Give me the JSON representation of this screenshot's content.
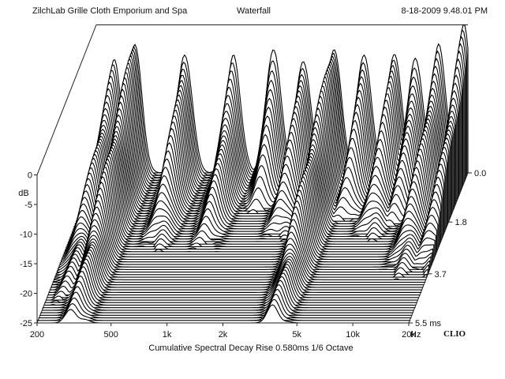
{
  "header": {
    "left": "ZilchLab Grille Cloth Emporium and Spa",
    "center": "Waterfall",
    "right": "8-18-2009 9.48.01 PM"
  },
  "chart_data": {
    "type": "waterfall",
    "caption": "Cumulative Spectral Decay   Rise 0.580ms   1/6 Octave",
    "brand": "CLIO",
    "x_axis": {
      "scale": "log",
      "range_hz": [
        200,
        20000
      ],
      "ticks": [
        {
          "value": 200,
          "label": "200"
        },
        {
          "value": 500,
          "label": "500"
        },
        {
          "value": 1000,
          "label": "1k"
        },
        {
          "value": 2000,
          "label": "2k"
        },
        {
          "value": 5000,
          "label": "5k"
        },
        {
          "value": 10000,
          "label": "10k"
        },
        {
          "value": 20000,
          "label": "20k"
        }
      ],
      "unit": "Hz"
    },
    "y_axis": {
      "label": "dB",
      "range_db": [
        -25,
        0
      ],
      "ticks": [
        {
          "value": 0,
          "label": "0"
        },
        {
          "value": -5,
          "label": "-5"
        },
        {
          "value": -10,
          "label": "-10"
        },
        {
          "value": -15,
          "label": "-15"
        },
        {
          "value": -20,
          "label": "-20"
        },
        {
          "value": -25,
          "label": "-25"
        }
      ]
    },
    "z_axis": {
      "unit": "ms",
      "range_ms": [
        0,
        5.5
      ],
      "ticks": [
        {
          "value": 0.0,
          "label": "0.0"
        },
        {
          "value": 1.8,
          "label": "1.8"
        },
        {
          "value": 3.7,
          "label": "3.7"
        },
        {
          "value": 5.5,
          "label": "5.5"
        }
      ]
    },
    "slices": 60,
    "grid": false,
    "features": [
      {
        "freq_hz": 250,
        "level_db": -7,
        "decay_ms": 4.6
      },
      {
        "freq_hz": 320,
        "level_db": -3,
        "decay_ms": 5.0
      },
      {
        "freq_hz": 600,
        "level_db": -4,
        "decay_ms": 2.4
      },
      {
        "freq_hz": 1100,
        "level_db": -6,
        "decay_ms": 2.6
      },
      {
        "freq_hz": 1800,
        "level_db": -3,
        "decay_ms": 1.2
      },
      {
        "freq_hz": 2600,
        "level_db": -5,
        "decay_ms": 2.2
      },
      {
        "freq_hz": 3800,
        "level_db": -3,
        "decay_ms": 5.0
      },
      {
        "freq_hz": 5500,
        "level_db": -4,
        "decay_ms": 1.6
      },
      {
        "freq_hz": 8000,
        "level_db": -4,
        "decay_ms": 2.1
      },
      {
        "freq_hz": 10500,
        "level_db": -5,
        "decay_ms": 1.8
      },
      {
        "freq_hz": 14000,
        "level_db": -4,
        "decay_ms": 3.2
      },
      {
        "freq_hz": 19000,
        "level_db": -1,
        "decay_ms": 2.8
      }
    ]
  }
}
